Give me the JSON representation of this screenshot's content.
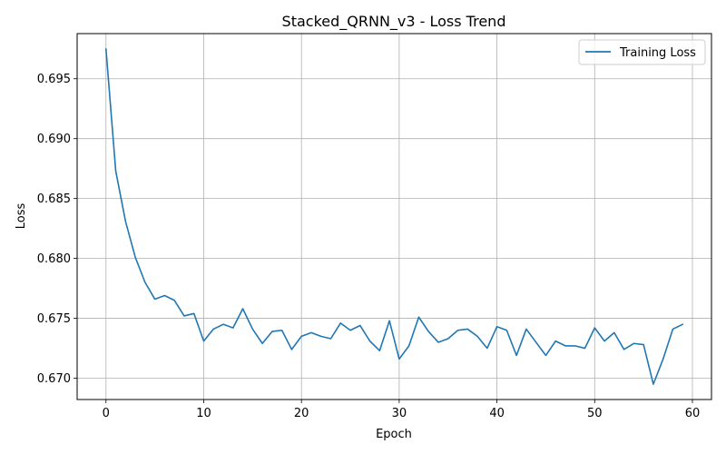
{
  "chart_data": {
    "type": "line",
    "title": "Stacked_QRNN_v3 - Loss Trend",
    "xlabel": "Epoch",
    "ylabel": "Loss",
    "xlim": [
      -2.95,
      61.95
    ],
    "ylim": [
      0.66822,
      0.69877
    ],
    "xticks": [
      0,
      10,
      20,
      30,
      40,
      50,
      60
    ],
    "yticks": [
      0.67,
      0.675,
      0.68,
      0.685,
      0.69,
      0.695
    ],
    "grid": true,
    "legend_position": "top-right",
    "series": [
      {
        "name": "Training Loss",
        "color": "#1f77b4",
        "x": [
          0,
          1,
          2,
          3,
          4,
          5,
          6,
          7,
          8,
          9,
          10,
          11,
          12,
          13,
          14,
          15,
          16,
          17,
          18,
          19,
          20,
          21,
          22,
          23,
          24,
          25,
          26,
          27,
          28,
          29,
          30,
          31,
          32,
          33,
          34,
          35,
          36,
          37,
          38,
          39,
          40,
          41,
          42,
          43,
          44,
          45,
          46,
          47,
          48,
          49,
          50,
          51,
          52,
          53,
          54,
          55,
          56,
          57,
          58,
          59
        ],
        "y": [
          0.6975,
          0.6873,
          0.6831,
          0.6801,
          0.678,
          0.6766,
          0.6769,
          0.6765,
          0.6752,
          0.6754,
          0.6731,
          0.6741,
          0.6745,
          0.6742,
          0.6758,
          0.6741,
          0.6729,
          0.6739,
          0.674,
          0.6724,
          0.6735,
          0.6738,
          0.6735,
          0.6733,
          0.6746,
          0.674,
          0.6744,
          0.6731,
          0.6723,
          0.6748,
          0.6716,
          0.6727,
          0.6751,
          0.6739,
          0.673,
          0.6733,
          0.674,
          0.6741,
          0.6735,
          0.6725,
          0.6743,
          0.674,
          0.6719,
          0.6741,
          0.673,
          0.6719,
          0.6731,
          0.6727,
          0.6727,
          0.6725,
          0.6742,
          0.6731,
          0.6738,
          0.6724,
          0.6729,
          0.6728,
          0.6695,
          0.6716,
          0.6741,
          0.6745
        ]
      }
    ]
  }
}
